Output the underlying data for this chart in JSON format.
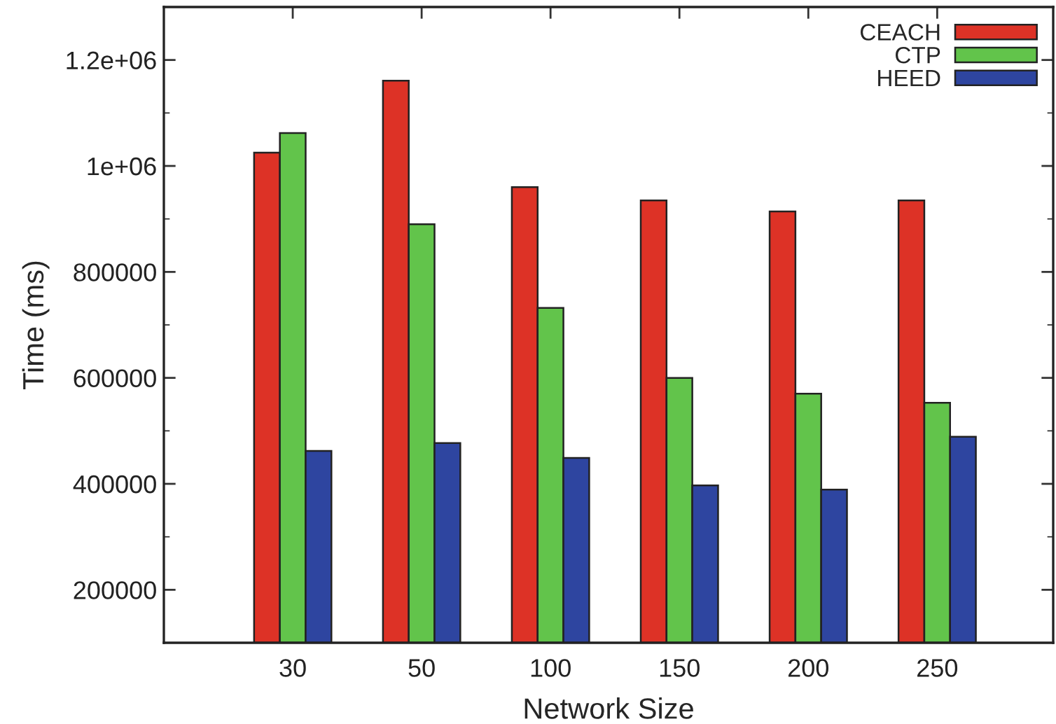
{
  "chart_data": {
    "type": "bar",
    "xlabel": "Network Size",
    "ylabel": "Time (ms)",
    "categories": [
      "30",
      "50",
      "100",
      "150",
      "200",
      "250"
    ],
    "series": [
      {
        "name": "CEACH",
        "color": "#dd3226",
        "values": [
          1025000,
          1161000,
          960000,
          935000,
          914000,
          935000
        ]
      },
      {
        "name": "CTP",
        "color": "#62c44b",
        "values": [
          1062000,
          890000,
          732000,
          600000,
          570000,
          553000
        ]
      },
      {
        "name": "HEED",
        "color": "#2e45a0",
        "values": [
          462000,
          477000,
          449000,
          397000,
          389000,
          489000
        ]
      }
    ],
    "ylim": [
      100000,
      1300000
    ],
    "yticks": [
      200000,
      400000,
      600000,
      800000,
      {
        "value": 1000000,
        "label": "1e+06"
      },
      {
        "value": 1200000,
        "label": "1.2e+06"
      }
    ],
    "grid": false,
    "legend": "top right"
  }
}
